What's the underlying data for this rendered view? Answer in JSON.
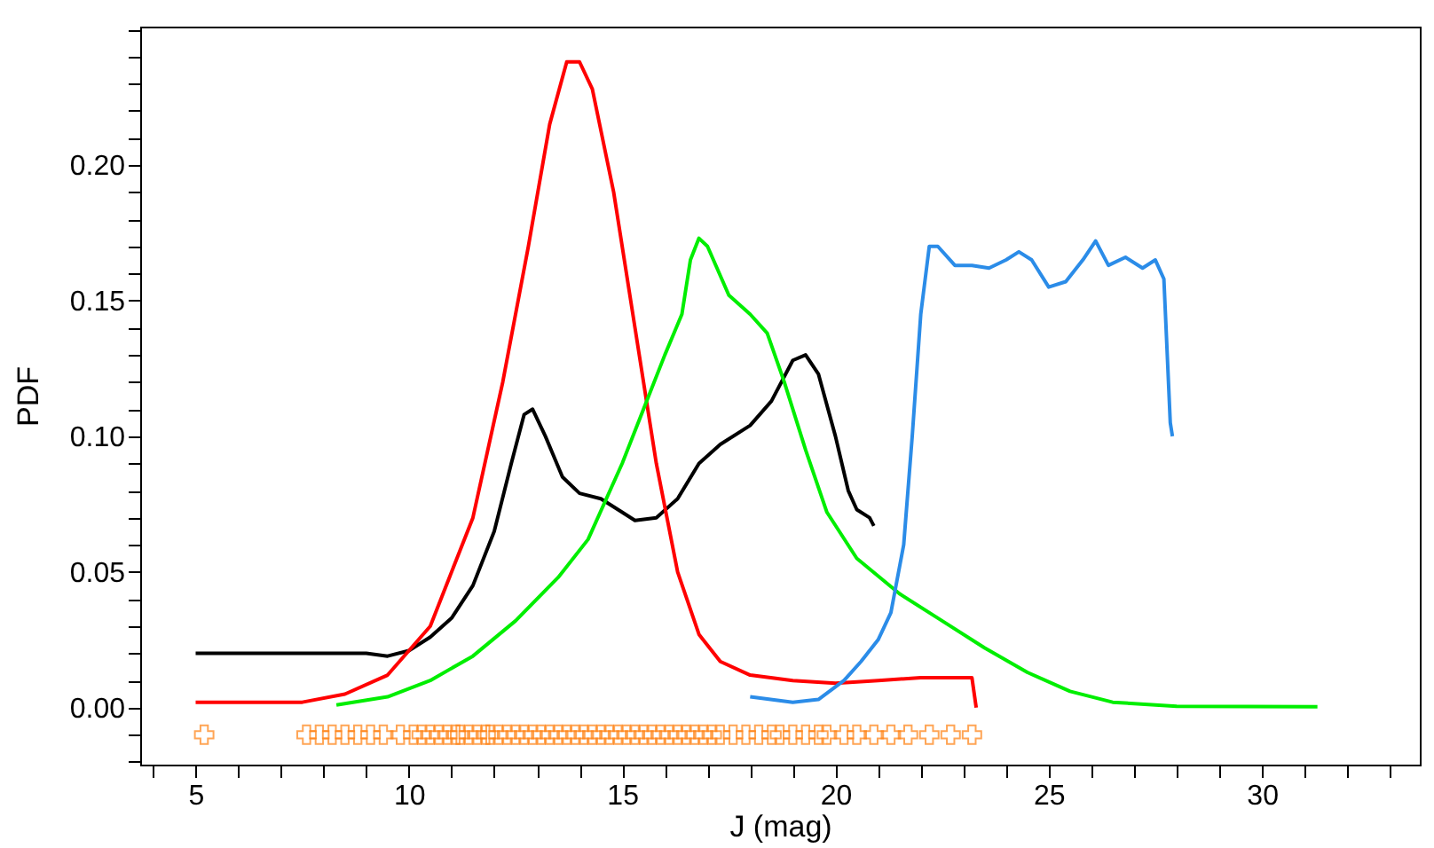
{
  "chart_data": {
    "type": "line",
    "xlabel": "J (mag)",
    "ylabel": "PDF",
    "xlim": [
      3.7,
      33.7
    ],
    "ylim": [
      -0.021,
      0.251
    ],
    "xticks": [
      {
        "value": 4,
        "label": null
      },
      5,
      {
        "value": 6,
        "label": null
      },
      {
        "value": 7,
        "label": null
      },
      {
        "value": 8,
        "label": null
      },
      {
        "value": 9,
        "label": null
      },
      10,
      {
        "value": 11,
        "label": null
      },
      {
        "value": 12,
        "label": null
      },
      {
        "value": 13,
        "label": null
      },
      {
        "value": 14,
        "label": null
      },
      15,
      {
        "value": 16,
        "label": null
      },
      {
        "value": 17,
        "label": null
      },
      {
        "value": 18,
        "label": null
      },
      {
        "value": 19,
        "label": null
      },
      20,
      {
        "value": 21,
        "label": null
      },
      {
        "value": 22,
        "label": null
      },
      {
        "value": 23,
        "label": null
      },
      {
        "value": 24,
        "label": null
      },
      25,
      {
        "value": 26,
        "label": null
      },
      {
        "value": 27,
        "label": null
      },
      {
        "value": 28,
        "label": null
      },
      {
        "value": 29,
        "label": null
      },
      30,
      {
        "value": 31,
        "label": null
      },
      {
        "value": 32,
        "label": null
      },
      {
        "value": 33,
        "label": null
      }
    ],
    "yticks": [
      {
        "value": -0.02,
        "label": null
      },
      {
        "value": -0.01,
        "label": null
      },
      {
        "value": 0,
        "label": "0.00"
      },
      {
        "value": 0.01,
        "label": null
      },
      {
        "value": 0.02,
        "label": null
      },
      {
        "value": 0.03,
        "label": null
      },
      {
        "value": 0.04,
        "label": null
      },
      {
        "value": 0.05,
        "label": "0.05"
      },
      {
        "value": 0.06,
        "label": null
      },
      {
        "value": 0.07,
        "label": null
      },
      {
        "value": 0.08,
        "label": null
      },
      {
        "value": 0.09,
        "label": null
      },
      {
        "value": 0.1,
        "label": "0.10"
      },
      {
        "value": 0.11,
        "label": null
      },
      {
        "value": 0.12,
        "label": null
      },
      {
        "value": 0.13,
        "label": null
      },
      {
        "value": 0.14,
        "label": null
      },
      {
        "value": 0.15,
        "label": "0.15"
      },
      {
        "value": 0.16,
        "label": null
      },
      {
        "value": 0.17,
        "label": null
      },
      {
        "value": 0.18,
        "label": null
      },
      {
        "value": 0.19,
        "label": null
      },
      {
        "value": 0.2,
        "label": "0.20"
      },
      {
        "value": 0.21,
        "label": null
      },
      {
        "value": 0.22,
        "label": null
      },
      {
        "value": 0.23,
        "label": null
      },
      {
        "value": 0.24,
        "label": null
      },
      {
        "value": 0.25,
        "label": null
      }
    ],
    "grid": false,
    "line_style": "solid",
    "series": [
      {
        "color": "#000000",
        "x": [
          5.0,
          9.0,
          9.5,
          10.0,
          10.5,
          11.0,
          11.5,
          12.0,
          12.4,
          12.7,
          12.9,
          13.2,
          13.6,
          14.0,
          14.5,
          15.0,
          15.3,
          15.8,
          16.3,
          16.8,
          17.3,
          18.0,
          18.5,
          19.0,
          19.3,
          19.6,
          20.0,
          20.3,
          20.5,
          20.8,
          20.9
        ],
        "values": [
          0.02,
          0.02,
          0.019,
          0.021,
          0.026,
          0.033,
          0.045,
          0.065,
          0.09,
          0.108,
          0.11,
          0.1,
          0.085,
          0.079,
          0.077,
          0.072,
          0.069,
          0.07,
          0.077,
          0.09,
          0.097,
          0.104,
          0.113,
          0.128,
          0.13,
          0.123,
          0.1,
          0.08,
          0.073,
          0.07,
          0.067
        ]
      },
      {
        "color": "#ff0000",
        "x": [
          5.0,
          7.5,
          8.5,
          9.5,
          10.5,
          11.5,
          12.2,
          12.8,
          13.3,
          13.7,
          14.0,
          14.3,
          14.8,
          15.3,
          15.8,
          16.3,
          16.8,
          17.3,
          18.0,
          19.0,
          20.0,
          21.0,
          22.0,
          23.2,
          23.3
        ],
        "values": [
          0.002,
          0.002,
          0.005,
          0.012,
          0.03,
          0.07,
          0.12,
          0.17,
          0.215,
          0.238,
          0.238,
          0.228,
          0.19,
          0.14,
          0.09,
          0.05,
          0.027,
          0.017,
          0.012,
          0.01,
          0.009,
          0.01,
          0.011,
          0.011,
          0.0
        ]
      },
      {
        "color": "#00ee00",
        "x": [
          8.3,
          9.5,
          10.5,
          11.5,
          12.5,
          13.5,
          14.2,
          15.0,
          15.5,
          16.0,
          16.4,
          16.6,
          16.8,
          17.0,
          17.5,
          18.0,
          18.4,
          18.8,
          19.3,
          19.8,
          20.5,
          21.5,
          22.5,
          23.5,
          24.5,
          25.5,
          26.5,
          28.0,
          31.3
        ],
        "values": [
          0.001,
          0.004,
          0.01,
          0.019,
          0.032,
          0.048,
          0.062,
          0.09,
          0.11,
          0.13,
          0.145,
          0.165,
          0.173,
          0.17,
          0.152,
          0.145,
          0.138,
          0.12,
          0.095,
          0.072,
          0.055,
          0.042,
          0.032,
          0.022,
          0.013,
          0.006,
          0.002,
          0.0005,
          0.0003
        ]
      },
      {
        "color": "#2b8ce8",
        "x": [
          18.0,
          19.0,
          19.6,
          20.2,
          20.6,
          21.0,
          21.3,
          21.6,
          21.8,
          22.0,
          22.2,
          22.4,
          22.8,
          23.2,
          23.6,
          24.0,
          24.3,
          24.6,
          25.0,
          25.4,
          25.8,
          26.1,
          26.4,
          26.8,
          27.2,
          27.5,
          27.7,
          27.85,
          27.9
        ],
        "values": [
          0.004,
          0.002,
          0.003,
          0.01,
          0.017,
          0.025,
          0.035,
          0.06,
          0.1,
          0.145,
          0.17,
          0.17,
          0.163,
          0.163,
          0.162,
          0.165,
          0.168,
          0.165,
          0.155,
          0.157,
          0.165,
          0.172,
          0.163,
          0.166,
          0.162,
          0.165,
          0.158,
          0.105,
          0.1
        ]
      },
      {
        "type": "scatter",
        "color": "#ff7f0e",
        "x": [
          5.2,
          7.6,
          7.9,
          8.2,
          8.5,
          8.8,
          9.1,
          9.4,
          9.8,
          10.1,
          10.3,
          10.5,
          10.7,
          10.9,
          11.1,
          11.2,
          11.4,
          11.6,
          11.8,
          11.9,
          12.1,
          12.3,
          12.5,
          12.7,
          12.9,
          13.1,
          13.3,
          13.5,
          13.7,
          13.9,
          14.1,
          14.3,
          14.5,
          14.7,
          14.9,
          15.1,
          15.3,
          15.5,
          15.7,
          15.9,
          16.1,
          16.3,
          16.5,
          16.7,
          16.9,
          17.1,
          17.3,
          17.6,
          17.9,
          18.2,
          18.5,
          18.7,
          19.0,
          19.3,
          19.6,
          19.8,
          20.2,
          20.5,
          20.9,
          21.3,
          21.7,
          22.2,
          22.7,
          23.2
        ],
        "values": [
          -0.01,
          -0.01,
          -0.01,
          -0.01,
          -0.01,
          -0.01,
          -0.01,
          -0.01,
          -0.01,
          -0.01,
          -0.01,
          -0.01,
          -0.01,
          -0.01,
          -0.01,
          -0.01,
          -0.01,
          -0.01,
          -0.01,
          -0.01,
          -0.01,
          -0.01,
          -0.01,
          -0.01,
          -0.01,
          -0.01,
          -0.01,
          -0.01,
          -0.01,
          -0.01,
          -0.01,
          -0.01,
          -0.01,
          -0.01,
          -0.01,
          -0.01,
          -0.01,
          -0.01,
          -0.01,
          -0.01,
          -0.01,
          -0.01,
          -0.01,
          -0.01,
          -0.01,
          -0.01,
          -0.01,
          -0.01,
          -0.01,
          -0.01,
          -0.01,
          -0.01,
          -0.01,
          -0.01,
          -0.01,
          -0.01,
          -0.01,
          -0.01,
          -0.01,
          -0.01,
          -0.01,
          -0.01,
          -0.01,
          -0.01
        ]
      }
    ]
  }
}
